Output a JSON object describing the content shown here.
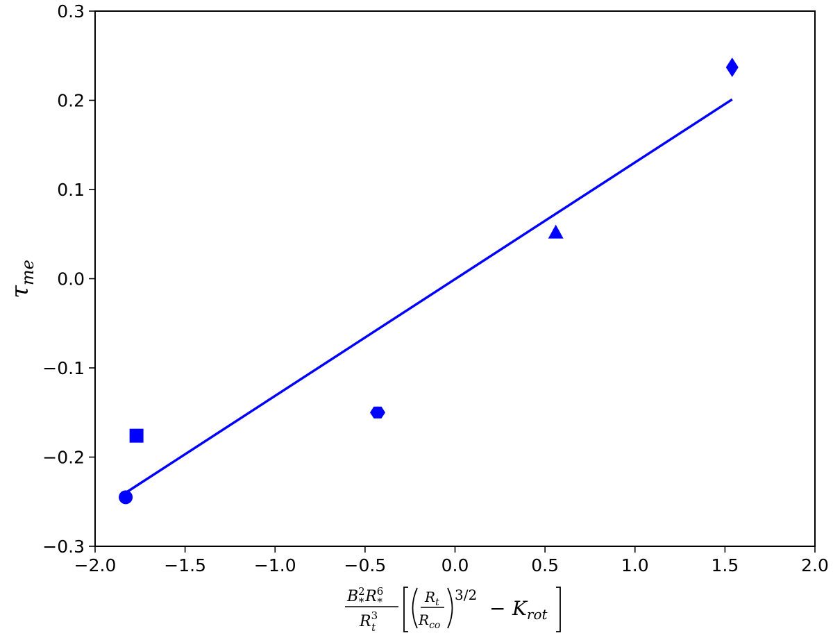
{
  "chart_data": {
    "type": "scatter",
    "title": "",
    "xlabel": {
      "B": "B",
      "B_sup": "2",
      "B_sub": "*",
      "R": "R",
      "R_sup": "6",
      "R_sub": "*",
      "Rt": "R",
      "Rt_sup": "3",
      "Rt_sub": "t",
      "inner_num": "R",
      "inner_num_sub": "t",
      "inner_den": "R",
      "inner_den_sub": "co",
      "exponent": "3/2",
      "minus": "−",
      "K": "K",
      "K_sub": "rot"
    },
    "ylabel": {
      "base": "τ",
      "sub": "me"
    },
    "xlim": [
      -2.0,
      2.0
    ],
    "ylim": [
      -0.3,
      0.3
    ],
    "xticks": [
      "−2.0",
      "−1.5",
      "−1.0",
      "−0.5",
      "0.0",
      "0.5",
      "1.0",
      "1.5",
      "2.0"
    ],
    "xtick_values": [
      -2.0,
      -1.5,
      -1.0,
      -0.5,
      0.0,
      0.5,
      1.0,
      1.5,
      2.0
    ],
    "yticks": [
      "−0.3",
      "−0.2",
      "−0.1",
      "0.0",
      "0.1",
      "0.2",
      "0.3"
    ],
    "ytick_values": [
      -0.3,
      -0.2,
      -0.1,
      0.0,
      0.1,
      0.2,
      0.3
    ],
    "grid": false,
    "color": "#0000ff",
    "points": [
      {
        "x": -1.83,
        "y": -0.245,
        "marker": "circle"
      },
      {
        "x": -1.77,
        "y": -0.176,
        "marker": "square"
      },
      {
        "x": -0.43,
        "y": -0.15,
        "marker": "hexagon"
      },
      {
        "x": 0.56,
        "y": 0.052,
        "marker": "triangle"
      },
      {
        "x": 1.54,
        "y": 0.237,
        "marker": "diamond"
      }
    ],
    "fit_line": {
      "x": [
        -1.83,
        1.54
      ],
      "y": [
        -0.24,
        0.201
      ]
    }
  }
}
